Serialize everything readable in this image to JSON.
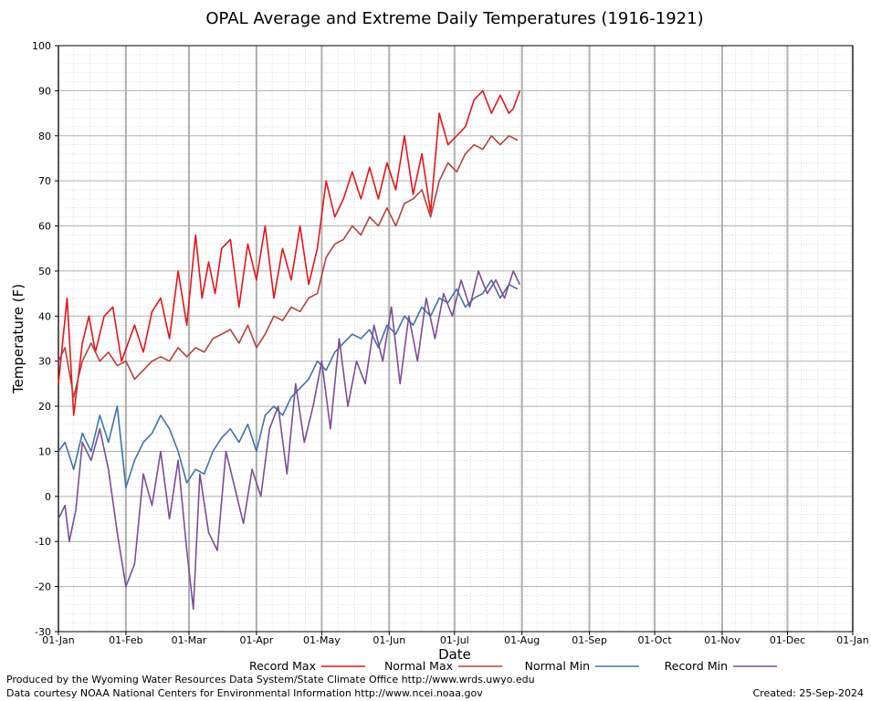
{
  "chart_data": {
    "type": "line",
    "title": "OPAL Average and Extreme Daily Temperatures (1916-1921)",
    "xlabel": "Date",
    "ylabel": "Temperature (F)",
    "ylim": [
      -30,
      100
    ],
    "yticks": [
      -30,
      -20,
      -10,
      0,
      10,
      20,
      30,
      40,
      50,
      60,
      70,
      80,
      90,
      100
    ],
    "x_day_range": [
      1,
      366
    ],
    "xticks": [
      {
        "label": "01-Jan",
        "day": 1
      },
      {
        "label": "01-Feb",
        "day": 32
      },
      {
        "label": "01-Mar",
        "day": 61
      },
      {
        "label": "01-Apr",
        "day": 92
      },
      {
        "label": "01-May",
        "day": 122
      },
      {
        "label": "01-Jun",
        "day": 153
      },
      {
        "label": "01-Jul",
        "day": 183
      },
      {
        "label": "01-Aug",
        "day": 214
      },
      {
        "label": "01-Sep",
        "day": 245
      },
      {
        "label": "01-Oct",
        "day": 275
      },
      {
        "label": "01-Nov",
        "day": 306
      },
      {
        "label": "01-Dec",
        "day": 336
      },
      {
        "label": "01-Jan",
        "day": 366
      }
    ],
    "grid": true,
    "legend_position": "bottom",
    "series": [
      {
        "name": "Record Max",
        "color": "#e8141a",
        "x": [
          1,
          5,
          8,
          12,
          15,
          18,
          22,
          26,
          30,
          33,
          36,
          40,
          44,
          48,
          52,
          56,
          60,
          64,
          67,
          70,
          73,
          76,
          80,
          84,
          88,
          92,
          96,
          100,
          104,
          108,
          112,
          116,
          120,
          124,
          128,
          132,
          136,
          140,
          144,
          148,
          152,
          156,
          160,
          164,
          168,
          172,
          176,
          180,
          184,
          188,
          192,
          196,
          200,
          204,
          208,
          210,
          213
        ],
        "y": [
          25,
          44,
          18,
          34,
          40,
          32,
          40,
          42,
          30,
          34,
          38,
          32,
          41,
          44,
          35,
          50,
          38,
          58,
          44,
          52,
          45,
          55,
          57,
          42,
          56,
          48,
          60,
          44,
          55,
          48,
          60,
          47,
          55,
          70,
          62,
          66,
          72,
          66,
          73,
          66,
          74,
          68,
          80,
          67,
          76,
          63,
          85,
          78,
          80,
          82,
          88,
          90,
          85,
          89,
          85,
          86,
          90
        ]
      },
      {
        "name": "Normal Max",
        "color": "#b8413a",
        "x": [
          1,
          4,
          8,
          12,
          16,
          20,
          24,
          28,
          32,
          36,
          40,
          44,
          48,
          52,
          56,
          60,
          64,
          68,
          72,
          76,
          80,
          84,
          88,
          92,
          96,
          100,
          104,
          108,
          112,
          116,
          120,
          124,
          128,
          132,
          136,
          140,
          144,
          148,
          152,
          156,
          160,
          164,
          168,
          172,
          176,
          180,
          184,
          188,
          192,
          196,
          200,
          204,
          208,
          212
        ],
        "y": [
          30,
          33,
          22,
          30,
          34,
          30,
          32,
          29,
          30,
          26,
          28,
          30,
          31,
          30,
          33,
          31,
          33,
          32,
          35,
          36,
          37,
          34,
          38,
          33,
          36,
          40,
          39,
          42,
          41,
          44,
          45,
          53,
          56,
          57,
          60,
          58,
          62,
          60,
          64,
          60,
          65,
          66,
          68,
          62,
          70,
          74,
          72,
          76,
          78,
          77,
          80,
          78,
          80,
          79
        ]
      },
      {
        "name": "Normal Min",
        "color": "#3f72ad",
        "x": [
          1,
          4,
          8,
          12,
          16,
          20,
          24,
          28,
          32,
          36,
          40,
          44,
          48,
          52,
          56,
          60,
          64,
          68,
          72,
          76,
          80,
          84,
          88,
          92,
          96,
          100,
          104,
          108,
          112,
          116,
          120,
          124,
          128,
          132,
          136,
          140,
          144,
          148,
          152,
          156,
          160,
          164,
          168,
          172,
          176,
          180,
          184,
          188,
          192,
          196,
          200,
          204,
          208,
          212
        ],
        "y": [
          10,
          12,
          6,
          14,
          10,
          18,
          12,
          20,
          2,
          8,
          12,
          14,
          18,
          15,
          10,
          3,
          6,
          5,
          10,
          13,
          15,
          12,
          16,
          10,
          18,
          20,
          18,
          22,
          24,
          26,
          30,
          28,
          32,
          34,
          36,
          35,
          37,
          33,
          38,
          36,
          40,
          38,
          42,
          40,
          44,
          43,
          46,
          42,
          44,
          45,
          48,
          44,
          47,
          46
        ]
      },
      {
        "name": "Record Min",
        "color": "#7a4e9a",
        "x": [
          1,
          4,
          6,
          9,
          12,
          16,
          20,
          24,
          28,
          32,
          36,
          40,
          44,
          48,
          52,
          56,
          60,
          63,
          66,
          70,
          74,
          78,
          82,
          86,
          90,
          94,
          98,
          102,
          106,
          110,
          114,
          118,
          122,
          126,
          130,
          134,
          138,
          142,
          146,
          150,
          154,
          158,
          162,
          166,
          170,
          174,
          178,
          182,
          186,
          190,
          194,
          198,
          202,
          206,
          210,
          213
        ],
        "y": [
          -5,
          -2,
          -10,
          -3,
          12,
          8,
          15,
          6,
          -8,
          -20,
          -15,
          5,
          -2,
          10,
          -5,
          8,
          -12,
          -25,
          5,
          -8,
          -12,
          10,
          2,
          -6,
          6,
          0,
          15,
          20,
          5,
          25,
          12,
          20,
          30,
          15,
          35,
          20,
          30,
          25,
          38,
          30,
          42,
          25,
          40,
          30,
          44,
          35,
          45,
          40,
          48,
          42,
          50,
          45,
          48,
          44,
          50,
          47
        ]
      }
    ]
  },
  "footer": {
    "produced_by": "Produced by the Wyoming Water Resources Data System/State Climate Office http://www.wrds.uwyo.edu",
    "courtesy": "Data courtesy NOAA National Centers for Environmental Information http://www.ncei.noaa.gov",
    "created": "Created:  25-Sep-2024"
  }
}
